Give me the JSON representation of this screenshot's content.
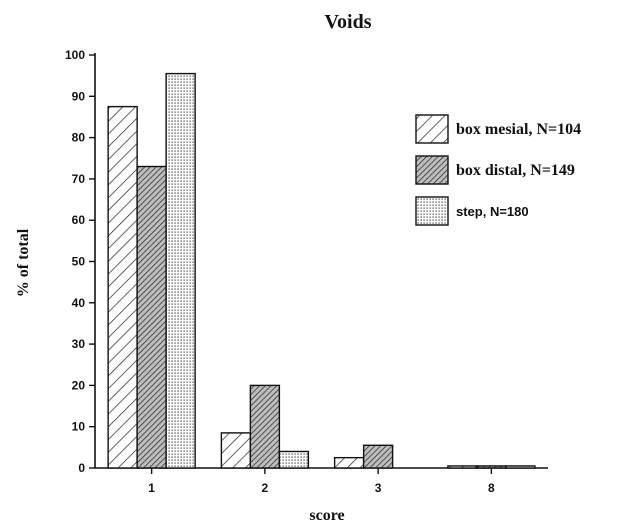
{
  "chart_data": {
    "type": "bar",
    "title": "Voids",
    "xlabel": "score",
    "ylabel": "% of total",
    "ylim": [
      0,
      100
    ],
    "yticks": [
      "0",
      "10",
      "20",
      "30",
      "40",
      "50",
      "60",
      "70",
      "80",
      "90",
      "100"
    ],
    "categories": [
      "1",
      "2",
      "3",
      "8"
    ],
    "legend_position": "right",
    "series": [
      {
        "name": "box mesial, N=104",
        "pattern": "light-diagonal-hatch",
        "values": [
          87.5,
          8.5,
          2.5,
          0.5
        ]
      },
      {
        "name": "box distal, N=149",
        "pattern": "dense-diagonal-hatch",
        "values": [
          73,
          20,
          5.5,
          0.5
        ]
      },
      {
        "name": "step, N=180",
        "pattern": "stipple-dots",
        "values": [
          95.5,
          4,
          0,
          0.5
        ]
      }
    ],
    "grid": false
  }
}
